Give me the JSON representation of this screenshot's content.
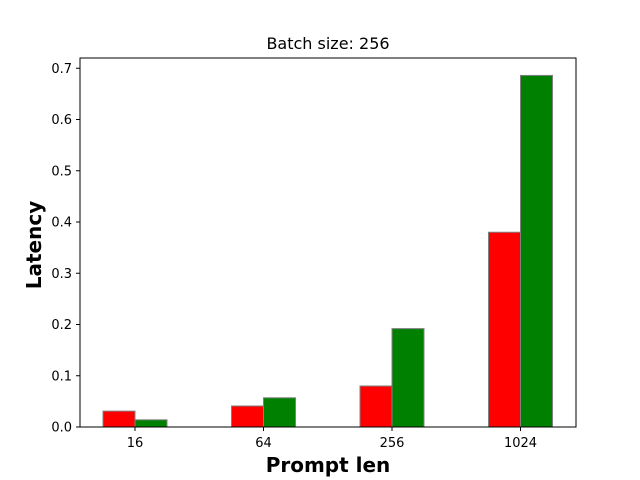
{
  "chart_data": {
    "type": "bar",
    "title": "Batch size: 256",
    "xlabel": "Prompt len",
    "ylabel": "Latency",
    "categories": [
      "16",
      "64",
      "256",
      "1024"
    ],
    "series": [
      {
        "values": [
          0.031,
          0.041,
          0.08,
          0.38
        ],
        "color": "#ff0000"
      },
      {
        "values": [
          0.014,
          0.057,
          0.192,
          0.686
        ],
        "color": "#008000"
      }
    ],
    "ylim": [
      0,
      0.72
    ],
    "yticks": [
      0.0,
      0.1,
      0.2,
      0.3,
      0.4,
      0.5,
      0.6,
      0.7
    ],
    "ytick_labels": [
      "0.0",
      "0.1",
      "0.2",
      "0.3",
      "0.4",
      "0.5",
      "0.6",
      "0.7"
    ],
    "grid": false,
    "edge_color": "#808080"
  }
}
